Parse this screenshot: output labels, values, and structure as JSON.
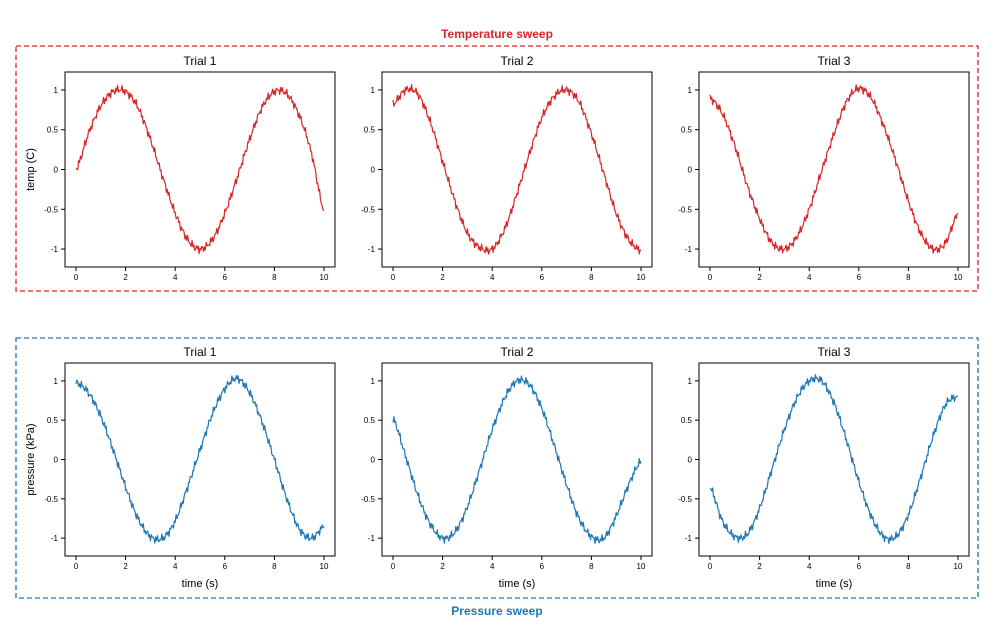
{
  "colors": {
    "temperature": "#d62728",
    "pressure": "#1f77b4"
  },
  "groups": {
    "temperature": {
      "title": "Temperature sweep"
    },
    "pressure": {
      "title": "Pressure sweep"
    }
  },
  "axis_labels": {
    "temp_y": "temp (C)",
    "pressure_y": "pressure (kPa)",
    "x": "time (s)"
  },
  "chart_data": [
    {
      "type": "line",
      "group": "Temperature sweep",
      "title": "Trial 1",
      "xlabel": "",
      "ylabel": "temp (C)",
      "xlim": [
        0,
        10
      ],
      "ylim": [
        -1.1,
        1.1
      ],
      "xticks": [
        0,
        2,
        4,
        6,
        8,
        10
      ],
      "yticks": [
        -1,
        -0.5,
        0,
        0.5,
        1
      ],
      "color": "#d62728",
      "grid": false,
      "series": [
        {
          "x": [
            0,
            0.5,
            1,
            1.5,
            2,
            2.5,
            3,
            3.5,
            4,
            4.5,
            5,
            5.5,
            6,
            6.5,
            7,
            7.5,
            8,
            8.5,
            9,
            9.5,
            10
          ],
          "y": [
            0,
            0.45,
            0.8,
            0.98,
            0.98,
            0.78,
            0.38,
            -0.1,
            -0.55,
            -0.88,
            -1.0,
            -0.88,
            -0.55,
            -0.1,
            0.38,
            0.78,
            0.98,
            0.95,
            0.68,
            0.2,
            -0.52
          ]
        }
      ]
    },
    {
      "type": "line",
      "group": "Temperature sweep",
      "title": "Trial 2",
      "xlabel": "",
      "ylabel": "",
      "xlim": [
        0,
        10
      ],
      "ylim": [
        -1.1,
        1.1
      ],
      "xticks": [
        0,
        2,
        4,
        6,
        8,
        10
      ],
      "yticks": [
        -1,
        -0.5,
        0,
        0.5,
        1
      ],
      "color": "#d62728",
      "grid": false,
      "series": [
        {
          "x": [
            0,
            0.5,
            1,
            1.5,
            2,
            2.5,
            3,
            3.5,
            4,
            4.5,
            5,
            5.5,
            6,
            6.5,
            7,
            7.5,
            8,
            8.5,
            9,
            9.5,
            10
          ],
          "y": [
            0.82,
            1.0,
            0.95,
            0.6,
            0.1,
            -0.4,
            -0.8,
            -0.98,
            -1.0,
            -0.75,
            -0.3,
            0.2,
            0.65,
            0.92,
            1.0,
            0.85,
            0.45,
            -0.05,
            -0.55,
            -0.88,
            -1.02
          ]
        }
      ]
    },
    {
      "type": "line",
      "group": "Temperature sweep",
      "title": "Trial 3",
      "xlabel": "",
      "ylabel": "",
      "xlim": [
        0,
        10
      ],
      "ylim": [
        -1.1,
        1.1
      ],
      "xticks": [
        0,
        2,
        4,
        6,
        8,
        10
      ],
      "yticks": [
        -1,
        -0.5,
        0,
        0.5,
        1
      ],
      "color": "#d62728",
      "grid": false,
      "series": [
        {
          "x": [
            0,
            0.5,
            1,
            1.5,
            2,
            2.5,
            3,
            3.5,
            4,
            4.5,
            5,
            5.5,
            6,
            6.5,
            7,
            7.5,
            8,
            8.5,
            9,
            9.5,
            10
          ],
          "y": [
            0.9,
            0.7,
            0.3,
            -0.2,
            -0.62,
            -0.92,
            -1.0,
            -0.85,
            -0.5,
            -0.02,
            0.45,
            0.85,
            1.02,
            0.9,
            0.55,
            0.1,
            -0.4,
            -0.8,
            -1.0,
            -0.92,
            -0.55
          ]
        }
      ]
    },
    {
      "type": "line",
      "group": "Pressure sweep",
      "title": "Trial 1",
      "xlabel": "time (s)",
      "ylabel": "pressure (kPa)",
      "xlim": [
        0,
        10
      ],
      "ylim": [
        -1.1,
        1.1
      ],
      "xticks": [
        0,
        2,
        4,
        6,
        8,
        10
      ],
      "yticks": [
        -1,
        -0.5,
        0,
        0.5,
        1
      ],
      "color": "#1f77b4",
      "grid": false,
      "series": [
        {
          "x": [
            0,
            0.5,
            1,
            1.5,
            2,
            2.5,
            3,
            3.5,
            4,
            4.5,
            5,
            5.5,
            6,
            6.5,
            7,
            7.5,
            8,
            8.5,
            9,
            9.5,
            10
          ],
          "y": [
            0.98,
            0.85,
            0.55,
            0.12,
            -0.35,
            -0.75,
            -0.98,
            -1.0,
            -0.78,
            -0.35,
            0.12,
            0.58,
            0.9,
            1.03,
            0.85,
            0.48,
            0.0,
            -0.5,
            -0.88,
            -1.0,
            -0.85
          ]
        }
      ]
    },
    {
      "type": "line",
      "group": "Pressure sweep",
      "title": "Trial 2",
      "xlabel": "time (s)",
      "ylabel": "",
      "xlim": [
        0,
        10
      ],
      "ylim": [
        -1.1,
        1.1
      ],
      "xticks": [
        0,
        2,
        4,
        6,
        8,
        10
      ],
      "yticks": [
        -1,
        -0.5,
        0,
        0.5,
        1
      ],
      "color": "#1f77b4",
      "grid": false,
      "series": [
        {
          "x": [
            0,
            0.5,
            1,
            1.5,
            2,
            2.5,
            3,
            3.5,
            4,
            4.5,
            5,
            5.5,
            6,
            6.5,
            7,
            7.5,
            8,
            8.5,
            9,
            9.5,
            10
          ],
          "y": [
            0.52,
            0.05,
            -0.45,
            -0.82,
            -1.0,
            -0.92,
            -0.6,
            -0.12,
            0.38,
            0.78,
            1.0,
            0.95,
            0.65,
            0.18,
            -0.32,
            -0.75,
            -0.98,
            -1.0,
            -0.72,
            -0.32,
            -0.02
          ]
        }
      ]
    },
    {
      "type": "line",
      "group": "Pressure sweep",
      "title": "Trial 3",
      "xlabel": "time (s)",
      "ylabel": "",
      "xlim": [
        0,
        10
      ],
      "ylim": [
        -1.1,
        1.1
      ],
      "xticks": [
        0,
        2,
        4,
        6,
        8,
        10
      ],
      "yticks": [
        -1,
        -0.5,
        0,
        0.5,
        1
      ],
      "color": "#1f77b4",
      "grid": false,
      "series": [
        {
          "x": [
            0,
            0.5,
            1,
            1.5,
            2,
            2.5,
            3,
            3.5,
            4,
            4.5,
            5,
            5.5,
            6,
            6.5,
            7,
            7.5,
            8,
            8.5,
            9,
            9.5,
            10
          ],
          "y": [
            -0.35,
            -0.78,
            -0.98,
            -0.95,
            -0.62,
            -0.12,
            0.38,
            0.78,
            1.0,
            1.0,
            0.72,
            0.25,
            -0.28,
            -0.72,
            -0.98,
            -0.98,
            -0.7,
            -0.22,
            0.3,
            0.7,
            0.8
          ]
        }
      ]
    }
  ]
}
